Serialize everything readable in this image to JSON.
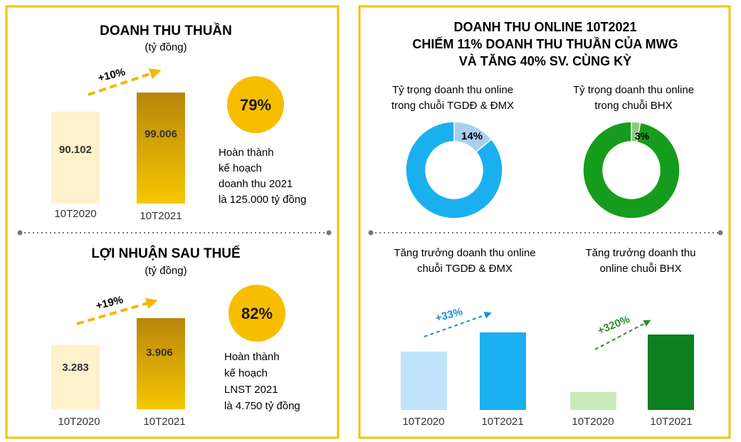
{
  "colors": {
    "panel_border": "#f2c200",
    "badge": "#f7be00",
    "bar_2020": "#fdf2cc",
    "bar_2021_top": "#b8860b",
    "bar_2021_bottom": "#f7c600",
    "dashed_arrow": "#f2b800",
    "online_ring": "#1ab0f0",
    "online_slice": "#a9cff0",
    "bhx_ring": "#169c1c",
    "bhx_slice": "#8ccb7a",
    "online_bar_2020": "#bfe3fb",
    "online_bar_2021": "#1ab0f0",
    "bhx_bar_2020": "#c7ecba",
    "bhx_bar_2021": "#0e7f1e",
    "blue_arrow": "#1a8fd6",
    "green_arrow": "#2e8b2e",
    "separator": "#777777"
  },
  "left_panel": {
    "revenue": {
      "title": "DOANH THU THUẦN",
      "unit": "(tỷ đồng)",
      "growth_label": "+10%",
      "badge": "79%",
      "note": [
        "Hoàn thành",
        "kế hoạch",
        "doanh thu 2021",
        "là 125.000 tỷ đồng"
      ]
    },
    "profit": {
      "title": "LỢI NHUẬN SAU THUẾ",
      "unit": "(tỷ đồng)",
      "growth_label": "+19%",
      "badge": "82%",
      "note": [
        "Hoàn thành",
        "kế hoạch",
        "LNST 2021",
        "là 4.750 tỷ đồng"
      ]
    }
  },
  "right_panel": {
    "title_lines": [
      "DOANH THU ONLINE 10T2021",
      "CHIẾM 11% DOANH THU THUẦN CỦA MWG",
      "VÀ TĂNG 40% SV. CÙNG KỲ"
    ],
    "donut_online_title": [
      "Tỷ trọng doanh thu online",
      "trong chuỗi TGDĐ & ĐMX"
    ],
    "donut_bhx_title": [
      "Tỷ trọng doanh thu online",
      "trong chuỗi BHX"
    ],
    "growth_online_title": [
      "Tăng trưởng doanh thu online",
      "chuỗi TGDĐ & ĐMX"
    ],
    "growth_bhx_title": [
      "Tăng trưởng doanh thu",
      "online chuỗi BHX"
    ],
    "growth_online_label": "+33%",
    "growth_bhx_label": "+320%"
  },
  "chart_data": [
    {
      "type": "bar",
      "title": "DOANH THU THUẦN",
      "ylabel": "(tỷ đồng)",
      "categories": [
        "10T2020",
        "10T2021"
      ],
      "values": [
        90102,
        99006
      ],
      "value_labels": [
        "90.102",
        "99.006"
      ],
      "annotation": "+10%"
    },
    {
      "type": "bar",
      "title": "LỢI NHUẬN SAU THUẾ",
      "ylabel": "(tỷ đồng)",
      "categories": [
        "10T2020",
        "10T2021"
      ],
      "values": [
        3283,
        3906
      ],
      "value_labels": [
        "3.283",
        "3.906"
      ],
      "annotation": "+19%"
    },
    {
      "type": "pie",
      "title": "Tỷ trọng doanh thu online trong chuỗi TGDĐ & ĐMX",
      "values": [
        14,
        86
      ],
      "value_labels": [
        "14%",
        ""
      ]
    },
    {
      "type": "pie",
      "title": "Tỷ trọng doanh thu online trong chuỗi BHX",
      "values": [
        3,
        97
      ],
      "value_labels": [
        "3%",
        ""
      ]
    },
    {
      "type": "bar",
      "title": "Tăng trưởng doanh thu online chuỗi TGDĐ & ĐMX",
      "categories": [
        "10T2020",
        "10T2021"
      ],
      "values": [
        100,
        133
      ],
      "annotation": "+33%"
    },
    {
      "type": "bar",
      "title": "Tăng trưởng doanh thu online chuỗi BHX",
      "categories": [
        "10T2020",
        "10T2021"
      ],
      "values": [
        25,
        105
      ],
      "annotation": "+320%"
    }
  ]
}
